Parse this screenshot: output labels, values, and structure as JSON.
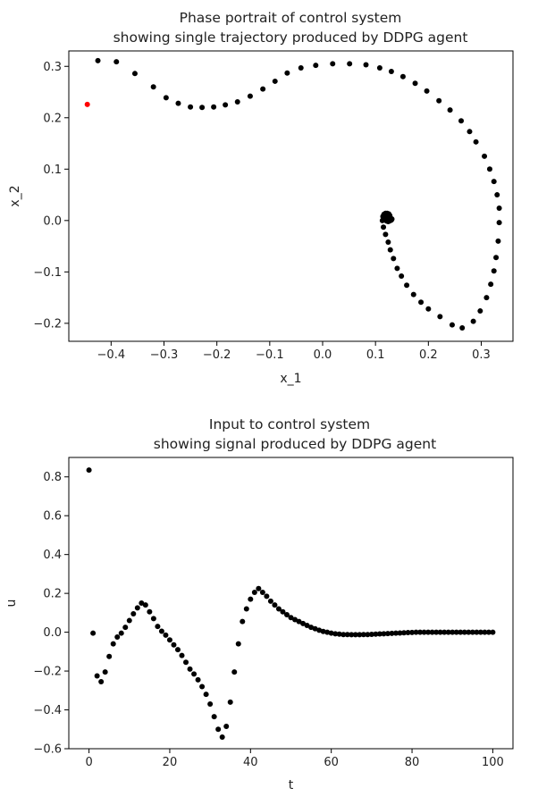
{
  "chart_data": [
    {
      "type": "scatter",
      "title": "Phase portrait of control system\nshowing single trajectory produced by DDPG agent",
      "title_lines": [
        "Phase portrait of control system",
        "showing single trajectory produced by DDPG agent"
      ],
      "xlabel": "x_1",
      "ylabel": "x_2",
      "xlim": [
        -0.48,
        0.36
      ],
      "ylim": [
        -0.235,
        0.33
      ],
      "xticks": [
        -0.4,
        -0.3,
        -0.2,
        -0.1,
        0.0,
        0.1,
        0.2,
        0.3
      ],
      "xtick_labels": [
        "−0.4",
        "−0.3",
        "−0.2",
        "−0.1",
        "0.0",
        "0.1",
        "0.2",
        "0.3"
      ],
      "yticks": [
        -0.2,
        -0.1,
        0.0,
        0.1,
        0.2,
        0.3
      ],
      "ytick_labels": [
        "−0.2",
        "−0.1",
        "0.0",
        "0.1",
        "0.2",
        "0.3"
      ],
      "grid": false,
      "colors": {
        "points": "#000000",
        "initial_state": "#ff0000"
      },
      "series": [
        {
          "color": "#ff0000",
          "points": [
            [
              -0.445,
              0.226
            ]
          ]
        },
        {
          "color": "#000000",
          "points": [
            [
              -0.425,
              0.311
            ],
            [
              -0.39,
              0.309
            ],
            [
              -0.355,
              0.286
            ],
            [
              -0.32,
              0.26
            ],
            [
              -0.296,
              0.239
            ],
            [
              -0.273,
              0.228
            ],
            [
              -0.25,
              0.221
            ],
            [
              -0.228,
              0.22
            ],
            [
              -0.206,
              0.221
            ],
            [
              -0.184,
              0.225
            ],
            [
              -0.161,
              0.231
            ],
            [
              -0.137,
              0.242
            ],
            [
              -0.113,
              0.256
            ],
            [
              -0.09,
              0.271
            ],
            [
              -0.067,
              0.287
            ],
            [
              -0.041,
              0.297
            ],
            [
              -0.013,
              0.302
            ],
            [
              0.019,
              0.305
            ],
            [
              0.051,
              0.305
            ],
            [
              0.082,
              0.303
            ],
            [
              0.108,
              0.297
            ],
            [
              0.13,
              0.29
            ],
            [
              0.152,
              0.28
            ],
            [
              0.175,
              0.267
            ],
            [
              0.197,
              0.252
            ],
            [
              0.22,
              0.233
            ],
            [
              0.241,
              0.215
            ],
            [
              0.262,
              0.194
            ],
            [
              0.278,
              0.173
            ],
            [
              0.29,
              0.153
            ],
            [
              0.306,
              0.125
            ],
            [
              0.316,
              0.1
            ],
            [
              0.324,
              0.076
            ],
            [
              0.33,
              0.05
            ],
            [
              0.334,
              0.024
            ],
            [
              0.334,
              -0.004
            ],
            [
              0.332,
              -0.04
            ],
            [
              0.328,
              -0.072
            ],
            [
              0.324,
              -0.098
            ],
            [
              0.318,
              -0.124
            ],
            [
              0.31,
              -0.15
            ],
            [
              0.298,
              -0.176
            ],
            [
              0.285,
              -0.196
            ],
            [
              0.264,
              -0.209
            ],
            [
              0.245,
              -0.203
            ],
            [
              0.222,
              -0.187
            ],
            [
              0.2,
              -0.172
            ],
            [
              0.186,
              -0.159
            ],
            [
              0.172,
              -0.144
            ],
            [
              0.159,
              -0.126
            ],
            [
              0.149,
              -0.108
            ],
            [
              0.141,
              -0.093
            ],
            [
              0.134,
              -0.074
            ],
            [
              0.128,
              -0.057
            ],
            [
              0.124,
              -0.042
            ],
            [
              0.119,
              -0.027
            ],
            [
              0.115,
              -0.013
            ],
            [
              0.113,
              0.0
            ],
            [
              0.114,
              0.008
            ],
            [
              0.116,
              0.012
            ],
            [
              0.119,
              0.014
            ],
            [
              0.122,
              0.014
            ],
            [
              0.125,
              0.013
            ],
            [
              0.127,
              0.01
            ],
            [
              0.128,
              0.006
            ],
            [
              0.128,
              0.002
            ],
            [
              0.126,
              -0.001
            ],
            [
              0.124,
              -0.002
            ],
            [
              0.121,
              -0.001
            ],
            [
              0.119,
              0.002
            ],
            [
              0.118,
              0.006
            ],
            [
              0.12,
              0.009
            ],
            [
              0.123,
              0.009
            ],
            [
              0.126,
              0.006
            ],
            [
              0.131,
              0.003
            ],
            [
              0.128,
              0.0
            ],
            [
              0.124,
              0.003
            ],
            [
              0.121,
              0.006
            ],
            [
              0.125,
              0.007
            ],
            [
              0.13,
              0.001
            ]
          ]
        }
      ]
    },
    {
      "type": "scatter",
      "title": "Input to control system\nshowing signal produced by DDPG agent",
      "title_lines": [
        "Input to control system",
        "showing signal produced by DDPG agent"
      ],
      "xlabel": "t",
      "ylabel": "u",
      "xlim": [
        -5,
        105
      ],
      "ylim": [
        -0.6,
        0.9
      ],
      "xticks": [
        0,
        20,
        40,
        60,
        80,
        100
      ],
      "xtick_labels": [
        "0",
        "20",
        "40",
        "60",
        "80",
        "100"
      ],
      "yticks": [
        -0.6,
        -0.4,
        -0.2,
        0.0,
        0.2,
        0.4,
        0.6,
        0.8
      ],
      "ytick_labels": [
        "−0.6",
        "−0.4",
        "−0.2",
        "0.0",
        "0.2",
        "0.4",
        "0.6",
        "0.8"
      ],
      "grid": false,
      "colors": {
        "points": "#000000"
      },
      "series": [
        {
          "color": "#000000",
          "x": [
            0,
            1,
            2,
            3,
            4,
            5,
            6,
            7,
            8,
            9,
            10,
            11,
            12,
            13,
            14,
            15,
            16,
            17,
            18,
            19,
            20,
            21,
            22,
            23,
            24,
            25,
            26,
            27,
            28,
            29,
            30,
            31,
            32,
            33,
            34,
            35,
            36,
            37,
            38,
            39,
            40,
            41,
            42,
            43,
            44,
            45,
            46,
            47,
            48,
            49,
            50,
            51,
            52,
            53,
            54,
            55,
            56,
            57,
            58,
            59,
            60,
            61,
            62,
            63,
            64,
            65,
            66,
            67,
            68,
            69,
            70,
            71,
            72,
            73,
            74,
            75,
            76,
            77,
            78,
            79,
            80,
            81,
            82,
            83,
            84,
            85,
            86,
            87,
            88,
            89,
            90,
            91,
            92,
            93,
            94,
            95,
            96,
            97,
            98,
            99,
            100
          ],
          "y": [
            0.835,
            -0.005,
            -0.225,
            -0.255,
            -0.205,
            -0.125,
            -0.06,
            -0.025,
            -0.005,
            0.025,
            0.06,
            0.095,
            0.125,
            0.15,
            0.14,
            0.105,
            0.07,
            0.03,
            0.005,
            -0.015,
            -0.04,
            -0.065,
            -0.09,
            -0.12,
            -0.155,
            -0.19,
            -0.215,
            -0.245,
            -0.28,
            -0.32,
            -0.37,
            -0.435,
            -0.5,
            -0.54,
            -0.485,
            -0.36,
            -0.205,
            -0.06,
            0.055,
            0.12,
            0.17,
            0.205,
            0.225,
            0.205,
            0.185,
            0.16,
            0.14,
            0.12,
            0.105,
            0.09,
            0.075,
            0.065,
            0.055,
            0.045,
            0.035,
            0.025,
            0.018,
            0.01,
            0.004,
            0.0,
            -0.005,
            -0.008,
            -0.01,
            -0.012,
            -0.012,
            -0.013,
            -0.013,
            -0.013,
            -0.012,
            -0.012,
            -0.011,
            -0.01,
            -0.009,
            -0.008,
            -0.007,
            -0.006,
            -0.005,
            -0.004,
            -0.003,
            -0.002,
            -0.001,
            0.0,
            0.0,
            0.0,
            0.0,
            0.0,
            0.0,
            0.0,
            0.0,
            0.0,
            0.0,
            0.0,
            0.0,
            0.0,
            0.0,
            0.0,
            0.0,
            0.0,
            0.0,
            0.0,
            0.0
          ]
        }
      ]
    }
  ]
}
